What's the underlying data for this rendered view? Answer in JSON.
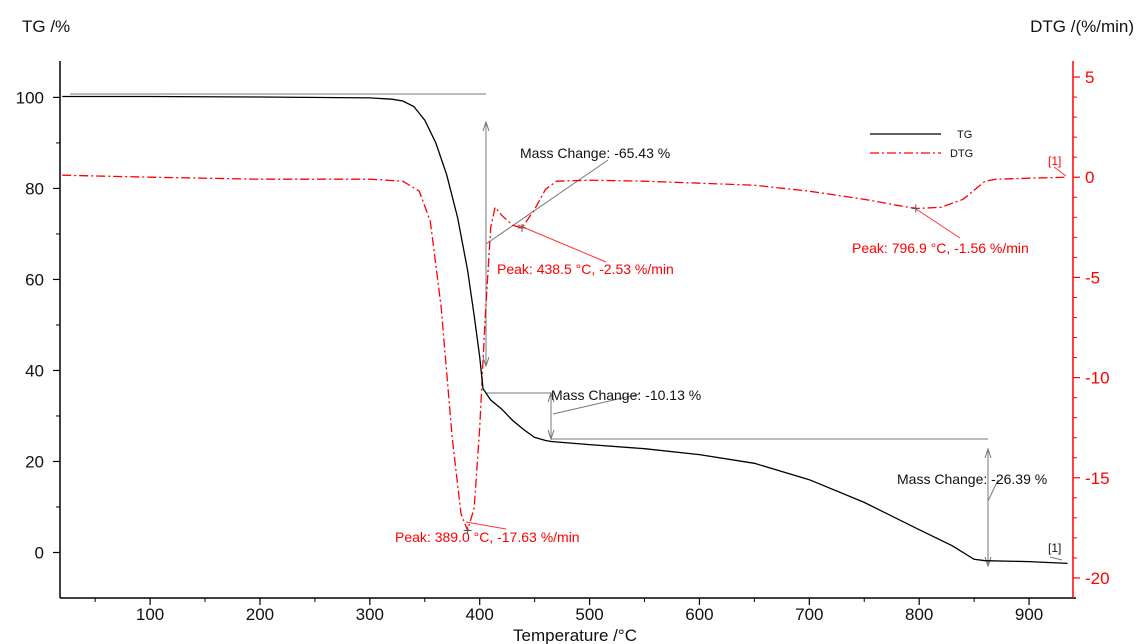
{
  "chart_data": {
    "type": "line",
    "xlabel": "Temperature /°C",
    "ylabel_left": "TG /%",
    "ylabel_right": "DTG /(%/min)",
    "xlim": [
      18,
      940
    ],
    "ylim_left": [
      -10,
      108
    ],
    "ylim_right": [
      -21,
      5.8
    ],
    "x_ticks": [
      100,
      200,
      300,
      400,
      500,
      600,
      700,
      800,
      900
    ],
    "y_left_ticks": [
      0,
      20,
      40,
      60,
      80,
      100
    ],
    "y_right_ticks": [
      5,
      0,
      -5,
      -10,
      -15,
      -20
    ],
    "x_tick_labels": [
      "100",
      "200",
      "300",
      "400",
      "500",
      "600",
      "700",
      "800",
      "900"
    ],
    "y_left_tick_labels": [
      "0",
      "20",
      "40",
      "60",
      "80",
      "100"
    ],
    "y_right_tick_labels": [
      "5",
      "0",
      "-5",
      "-10",
      "-15",
      "-20"
    ],
    "colors": {
      "TG": "#000000",
      "DTG": "#ff0000"
    },
    "grid": false,
    "legend_position": "top-right",
    "series": [
      {
        "name": "TG",
        "axis": "left",
        "style": "solid",
        "x": [
          20,
          100,
          200,
          300,
          320,
          330,
          340,
          350,
          360,
          370,
          380,
          389,
          395,
          400,
          403,
          410,
          420,
          430,
          440,
          450,
          460,
          465,
          500,
          550,
          600,
          650,
          700,
          750,
          800,
          830,
          850,
          860,
          900,
          935
        ],
        "y": [
          100.2,
          100.2,
          100.1,
          99.9,
          99.6,
          99.2,
          98.0,
          95.0,
          90.0,
          83.0,
          73.5,
          62.0,
          52.0,
          43.0,
          36.0,
          33.5,
          31.5,
          29.0,
          27.0,
          25.3,
          24.6,
          24.4,
          23.7,
          22.8,
          21.5,
          19.6,
          16.0,
          11.0,
          5.0,
          1.5,
          -1.5,
          -1.8,
          -2.0,
          -2.4
        ]
      },
      {
        "name": "DTG",
        "axis": "right",
        "style": "dash-dot",
        "x": [
          20,
          100,
          200,
          300,
          330,
          345,
          355,
          365,
          375,
          383,
          389,
          395,
          400,
          405,
          410,
          414,
          420,
          430,
          438.5,
          450,
          460,
          470,
          500,
          550,
          600,
          650,
          700,
          750,
          780,
          796.9,
          820,
          840,
          860,
          870,
          900,
          935
        ],
        "y": [
          0.1,
          0.0,
          -0.1,
          -0.1,
          -0.2,
          -0.7,
          -2.2,
          -6.5,
          -13.0,
          -16.8,
          -17.63,
          -16.5,
          -12.5,
          -7.0,
          -2.5,
          -1.5,
          -1.9,
          -2.4,
          -2.53,
          -1.6,
          -0.6,
          -0.2,
          -0.15,
          -0.2,
          -0.3,
          -0.4,
          -0.7,
          -1.1,
          -1.4,
          -1.56,
          -1.5,
          -1.1,
          -0.2,
          -0.1,
          -0.05,
          0.0
        ]
      }
    ],
    "annotations": [
      {
        "text": "Mass Change: -65.43 %",
        "series": "TG"
      },
      {
        "text": "Mass Change: -10.13 %",
        "series": "TG"
      },
      {
        "text": "Mass Change: -26.39 %",
        "series": "TG"
      },
      {
        "text": "Peak: 389.0 °C, -17.63 %/min",
        "series": "DTG"
      },
      {
        "text": "Peak: 438.5 °C, -2.53 %/min",
        "series": "DTG"
      },
      {
        "text": "Peak: 796.9 °C, -1.56 %/min",
        "series": "DTG"
      },
      {
        "text": "[1]",
        "series": "TG"
      },
      {
        "text": "[1]",
        "series": "DTG"
      }
    ]
  }
}
